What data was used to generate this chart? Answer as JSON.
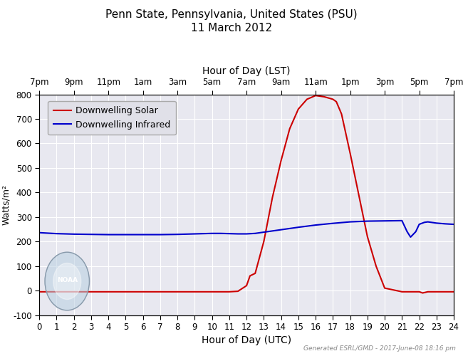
{
  "title_line1": "Penn State, Pennsylvania, United States (PSU)",
  "title_line2": "11 March 2012",
  "top_xlabel": "Hour of Day (LST)",
  "bottom_xlabel": "Hour of Day (UTC)",
  "ylabel": "Watts/m²",
  "watermark": "Generated ESRL/GMD - 2017-June-08 18:16 pm",
  "xlim": [
    0,
    24
  ],
  "ylim": [
    -100,
    800
  ],
  "yticks": [
    -100,
    0,
    100,
    200,
    300,
    400,
    500,
    600,
    700,
    800
  ],
  "xticks_bottom": [
    0,
    1,
    2,
    3,
    4,
    5,
    6,
    7,
    8,
    9,
    10,
    11,
    12,
    13,
    14,
    15,
    16,
    17,
    18,
    19,
    20,
    21,
    22,
    23,
    24
  ],
  "xticks_top_pos": [
    0,
    2,
    4,
    6,
    8,
    10,
    12,
    14,
    16,
    18,
    20,
    22,
    24
  ],
  "xticks_top_labels": [
    "7pm",
    "9pm",
    "11pm",
    "1am",
    "3am",
    "5am",
    "7am",
    "9am",
    "11am",
    "1pm",
    "3pm",
    "5pm",
    "7pm"
  ],
  "solar_color": "#cc0000",
  "infrared_color": "#0000cc",
  "legend_label_solar": "Downwelling Solar",
  "legend_label_infrared": "Downwelling Infrared",
  "background_color": "#ffffff",
  "plot_bg_color": "#e8e8f0",
  "grid_color": "#ffffff",
  "solar_x": [
    0,
    1,
    2,
    3,
    4,
    5,
    6,
    7,
    8,
    9,
    10,
    11,
    11.5,
    12,
    12.2,
    12.5,
    13,
    13.5,
    14,
    14.5,
    15,
    15.5,
    16,
    16.5,
    17,
    17.2,
    17.5,
    18,
    18.5,
    19,
    19.5,
    20,
    21,
    21.5,
    22,
    22.2,
    22.5,
    23,
    23.5,
    24
  ],
  "solar_y": [
    -5,
    -5,
    -5,
    -5,
    -5,
    -5,
    -5,
    -5,
    -5,
    -5,
    -5,
    -5,
    -3,
    20,
    60,
    70,
    200,
    380,
    530,
    660,
    740,
    780,
    795,
    790,
    780,
    770,
    720,
    560,
    390,
    220,
    100,
    10,
    -5,
    -5,
    -5,
    -10,
    -5,
    -5,
    -5,
    -5
  ],
  "infrared_x": [
    0,
    0.5,
    1,
    1.5,
    2,
    3,
    4,
    5,
    6,
    7,
    8,
    9,
    10,
    10.5,
    11,
    11.5,
    12,
    12.5,
    13,
    14,
    15,
    16,
    17,
    18,
    19,
    20,
    21,
    21.3,
    21.5,
    21.8,
    22,
    22.3,
    22.5,
    23,
    23.5,
    24
  ],
  "infrared_y": [
    236,
    234,
    232,
    231,
    230,
    229,
    228,
    228,
    228,
    228,
    229,
    231,
    233,
    233,
    232,
    231,
    231,
    233,
    238,
    248,
    258,
    267,
    274,
    280,
    283,
    284,
    285,
    240,
    218,
    240,
    270,
    278,
    280,
    275,
    272,
    270
  ]
}
